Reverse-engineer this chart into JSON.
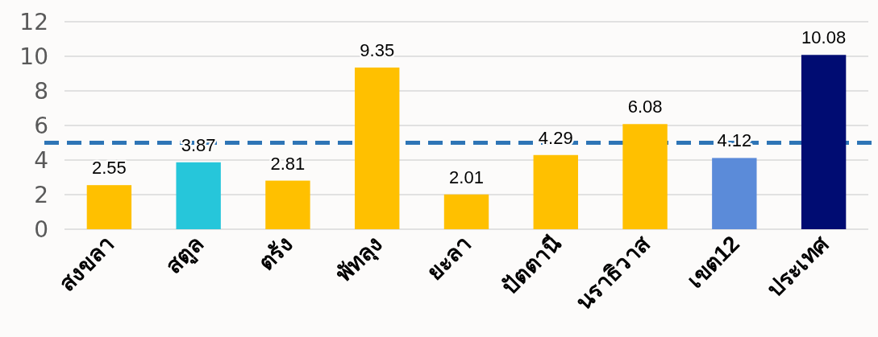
{
  "chart_data": {
    "type": "bar",
    "categories": [
      "สงขลา",
      "สตูล",
      "ตรัง",
      "พัทลุง",
      "ยะลา",
      "ปัตตานี",
      "นราธิวาส",
      "เขต12",
      "ประเทศ"
    ],
    "values": [
      2.55,
      3.87,
      2.81,
      9.35,
      2.01,
      4.29,
      6.08,
      4.12,
      10.08
    ],
    "colors": [
      "#ffc000",
      "#26c6da",
      "#ffc000",
      "#ffc000",
      "#ffc000",
      "#ffc000",
      "#ffc000",
      "#5b8bd9",
      "#000c72"
    ],
    "ylim": [
      0,
      12
    ],
    "yticks": [
      0,
      2,
      4,
      6,
      8,
      10,
      12
    ],
    "grid": "y",
    "data_labels": true,
    "ref_lines": [
      {
        "axis": "y",
        "value": 5,
        "color": "#2e75b6",
        "line_style": "dashed"
      }
    ]
  }
}
